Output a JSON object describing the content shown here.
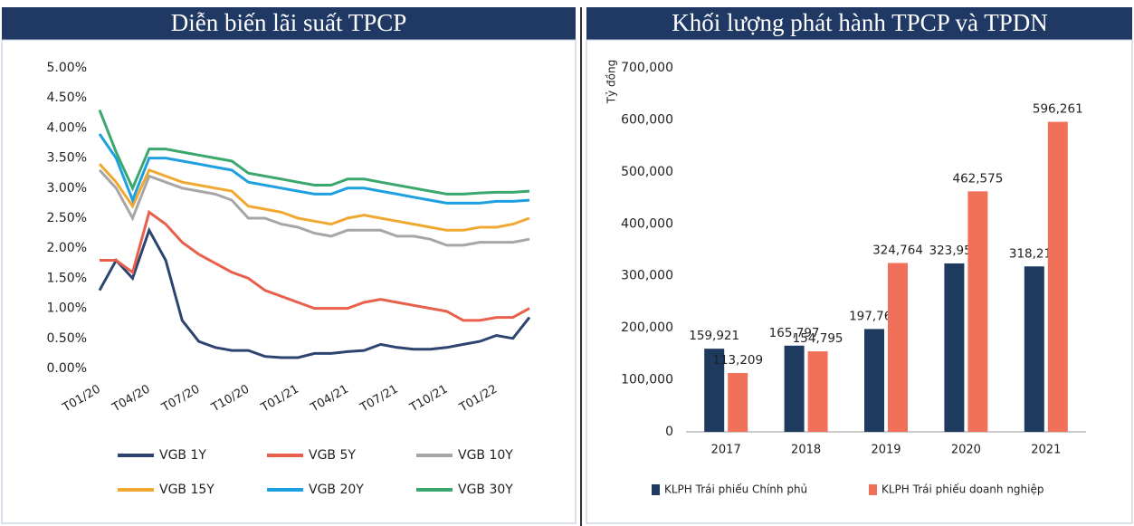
{
  "chart_data": [
    {
      "type": "line",
      "title": "Diễn biến lãi suất TPCP",
      "categories": [
        "T01/20",
        null,
        null,
        "T04/20",
        null,
        null,
        "T07/20",
        null,
        null,
        "T10/20",
        null,
        null,
        "T01/21",
        null,
        null,
        "T04/21",
        null,
        null,
        "T07/21",
        null,
        null,
        "T10/21",
        null,
        null,
        "T01/22",
        null,
        null
      ],
      "series": [
        {
          "name": "VGB 1Y",
          "color": "#2e4470",
          "values": [
            1.3,
            1.8,
            1.5,
            2.3,
            1.8,
            0.8,
            0.45,
            0.35,
            0.3,
            0.3,
            0.2,
            0.18,
            0.18,
            0.25,
            0.25,
            0.28,
            0.3,
            0.4,
            0.35,
            0.32,
            0.32,
            0.35,
            0.4,
            0.45,
            0.55,
            0.5,
            0.85
          ]
        },
        {
          "name": "VGB 5Y",
          "color": "#e8604c",
          "values": [
            1.8,
            1.8,
            1.6,
            2.6,
            2.4,
            2.1,
            1.9,
            1.75,
            1.6,
            1.5,
            1.3,
            1.2,
            1.1,
            1.0,
            1.0,
            1.0,
            1.1,
            1.15,
            1.1,
            1.05,
            1.0,
            0.95,
            0.8,
            0.8,
            0.85,
            0.85,
            1.0
          ]
        },
        {
          "name": "VGB 10Y",
          "color": "#a6a6a6",
          "values": [
            3.3,
            3.0,
            2.5,
            3.2,
            3.1,
            3.0,
            2.95,
            2.9,
            2.8,
            2.5,
            2.5,
            2.4,
            2.35,
            2.25,
            2.2,
            2.3,
            2.3,
            2.3,
            2.2,
            2.2,
            2.15,
            2.05,
            2.05,
            2.1,
            2.1,
            2.1,
            2.15
          ]
        },
        {
          "name": "VGB 15Y",
          "color": "#f0a830",
          "values": [
            3.4,
            3.1,
            2.7,
            3.3,
            3.2,
            3.1,
            3.05,
            3.0,
            2.95,
            2.7,
            2.65,
            2.6,
            2.5,
            2.45,
            2.4,
            2.5,
            2.55,
            2.5,
            2.45,
            2.4,
            2.35,
            2.3,
            2.3,
            2.35,
            2.35,
            2.4,
            2.5
          ]
        },
        {
          "name": "VGB 20Y",
          "color": "#1ea0e0",
          "values": [
            3.9,
            3.5,
            2.8,
            3.5,
            3.5,
            3.45,
            3.4,
            3.35,
            3.3,
            3.1,
            3.05,
            3.0,
            2.95,
            2.9,
            2.9,
            3.0,
            3.0,
            2.95,
            2.9,
            2.85,
            2.8,
            2.75,
            2.75,
            2.75,
            2.78,
            2.78,
            2.8
          ]
        },
        {
          "name": "VGB 30Y",
          "color": "#3aa76d",
          "values": [
            4.3,
            3.6,
            3.0,
            3.65,
            3.65,
            3.6,
            3.55,
            3.5,
            3.45,
            3.25,
            3.2,
            3.15,
            3.1,
            3.05,
            3.05,
            3.15,
            3.15,
            3.1,
            3.05,
            3.0,
            2.95,
            2.9,
            2.9,
            2.92,
            2.93,
            2.93,
            2.95
          ]
        }
      ],
      "ylim": [
        0,
        5
      ],
      "yticks": [
        {
          "value": 0,
          "label": "0.00%"
        },
        {
          "value": 0.5,
          "label": "0.50%"
        },
        {
          "value": 1,
          "label": "1.00%"
        },
        {
          "value": 1.5,
          "label": "1.50%"
        },
        {
          "value": 2,
          "label": "2.00%"
        },
        {
          "value": 2.5,
          "label": "2.50%"
        },
        {
          "value": 3,
          "label": "3.00%"
        },
        {
          "value": 3.5,
          "label": "3.50%"
        },
        {
          "value": 4,
          "label": "4.00%"
        },
        {
          "value": 4.5,
          "label": "4.50%"
        },
        {
          "value": 5,
          "label": "5.00%"
        }
      ],
      "grid": false,
      "legend": "bottom"
    },
    {
      "type": "bar",
      "title": "Khối lượng phát hành TPCP và TPDN",
      "y_label": "Tỷ đồng",
      "categories": [
        "2017",
        "2018",
        "2019",
        "2020",
        "2021"
      ],
      "series": [
        {
          "name": "KLPH Trái phiếu Chính phủ",
          "color": "#1f3a5f",
          "values": [
            159921,
            165797,
            197769,
            323953,
            318213
          ],
          "value_labels": [
            "159,921",
            "165,797",
            "197,769",
            "323,953",
            "318,213"
          ]
        },
        {
          "name": "KLPH Trái phiếu doanh nghiệp",
          "color": "#f0705a",
          "values": [
            113209,
            154795,
            324764,
            462575,
            596261
          ],
          "value_labels": [
            "113,209",
            "154,795",
            "324,764",
            "462,575",
            "596,261"
          ]
        }
      ],
      "ylim": [
        0,
        700000
      ],
      "yticks": [
        0,
        {
          "value": 100000,
          "label": "100,000"
        },
        {
          "value": 200000,
          "label": "200,000"
        },
        {
          "value": 300000,
          "label": "300,000"
        },
        {
          "value": 400000,
          "label": "400,000"
        },
        {
          "value": 500000,
          "label": "500,000"
        },
        {
          "value": 600000,
          "label": "600,000"
        },
        {
          "value": 700000,
          "label": "700,000"
        }
      ],
      "grid": false,
      "legend": "bottom"
    }
  ]
}
